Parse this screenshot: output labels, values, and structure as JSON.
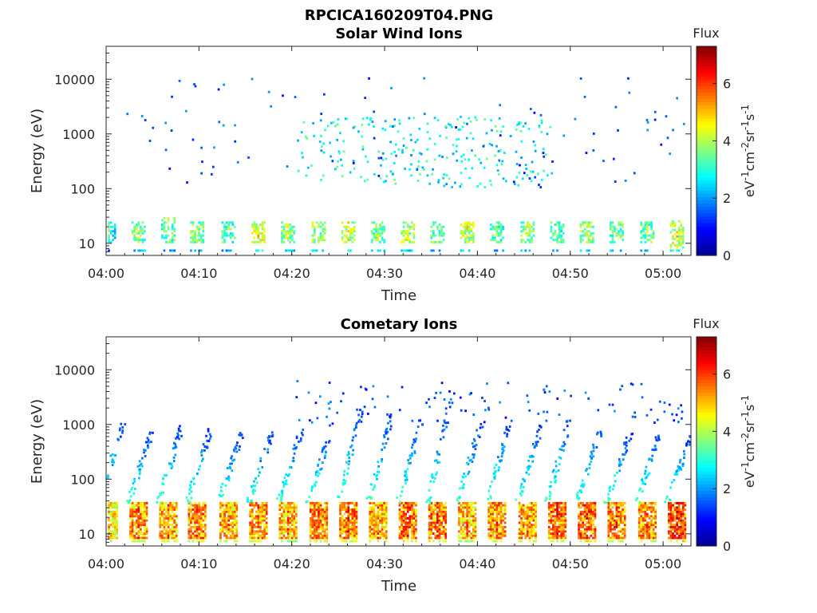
{
  "figure_title": "RPCICA160209T04.PNG",
  "colormap": [
    "#00008f",
    "#0000ff",
    "#0080ff",
    "#00ffff",
    "#80ff80",
    "#ffff00",
    "#ff8000",
    "#ff0000",
    "#800000"
  ],
  "chart_data": [
    {
      "type": "heatmap",
      "title": "Solar Wind Ions",
      "xlabel": "Time",
      "ylabel": "Energy (eV)",
      "yscale": "log",
      "xlim": [
        "04:00",
        "05:03"
      ],
      "ylim": [
        6,
        40000
      ],
      "xticks": [
        "04:00",
        "04:10",
        "04:20",
        "04:30",
        "04:40",
        "04:50",
        "05:00"
      ],
      "yticks": [
        10,
        100,
        1000,
        10000
      ],
      "ytick_labels": [
        "10",
        "100",
        "1000",
        "10000"
      ],
      "colorbar": {
        "title": "Flux",
        "label": "eV⁻¹cm⁻²sr⁻¹s⁻¹",
        "range": [
          0,
          7.3
        ],
        "ticks": [
          0,
          2,
          4,
          6
        ],
        "tick_labels": [
          "0",
          "2",
          "4",
          "6"
        ]
      },
      "bursts": [
        {
          "t": 0.3,
          "e_low": 10,
          "e_high": 25,
          "flux": 3.5
        },
        {
          "t": 3.5,
          "e_low": 10,
          "e_high": 25,
          "flux": 4.2
        },
        {
          "t": 6.7,
          "e_low": 10,
          "e_high": 30,
          "flux": 4.0
        },
        {
          "t": 9.8,
          "e_low": 10,
          "e_high": 25,
          "flux": 4.3
        },
        {
          "t": 13.2,
          "e_low": 10,
          "e_high": 25,
          "flux": 4.0
        },
        {
          "t": 16.4,
          "e_low": 10,
          "e_high": 25,
          "flux": 5.0
        },
        {
          "t": 19.6,
          "e_low": 10,
          "e_high": 25,
          "flux": 4.4
        },
        {
          "t": 22.9,
          "e_low": 10,
          "e_high": 25,
          "flux": 4.5
        },
        {
          "t": 26.1,
          "e_low": 10,
          "e_high": 25,
          "flux": 4.8
        },
        {
          "t": 29.3,
          "e_low": 10,
          "e_high": 25,
          "flux": 4.3
        },
        {
          "t": 32.5,
          "e_low": 10,
          "e_high": 25,
          "flux": 4.6
        },
        {
          "t": 35.7,
          "e_low": 10,
          "e_high": 25,
          "flux": 4.2
        },
        {
          "t": 38.9,
          "e_low": 10,
          "e_high": 25,
          "flux": 4.8
        },
        {
          "t": 42.1,
          "e_low": 10,
          "e_high": 25,
          "flux": 4.0
        },
        {
          "t": 45.4,
          "e_low": 10,
          "e_high": 25,
          "flux": 4.3
        },
        {
          "t": 48.6,
          "e_low": 10,
          "e_high": 25,
          "flux": 4.0
        },
        {
          "t": 51.8,
          "e_low": 10,
          "e_high": 25,
          "flux": 4.5
        },
        {
          "t": 55.0,
          "e_low": 10,
          "e_high": 25,
          "flux": 4.2
        },
        {
          "t": 58.3,
          "e_low": 10,
          "e_high": 25,
          "flux": 4.2
        },
        {
          "t": 61.5,
          "e_low": 8,
          "e_high": 25,
          "flux": 5.0
        }
      ],
      "upper_band": {
        "t_start": 20.5,
        "t_end": 48.0,
        "e_low": 100,
        "e_high": 2000,
        "flux": 2.8
      },
      "scatter_region": {
        "t_start": 2.0,
        "t_end": 63.0,
        "e_low": 100,
        "e_high": 10000,
        "flux": 1.5
      }
    },
    {
      "type": "heatmap",
      "title": "Cometary Ions",
      "xlabel": "Time",
      "ylabel": "Energy (eV)",
      "yscale": "log",
      "xlim": [
        "04:00",
        "05:03"
      ],
      "ylim": [
        6,
        40000
      ],
      "xticks": [
        "04:00",
        "04:10",
        "04:20",
        "04:30",
        "04:40",
        "04:50",
        "05:00"
      ],
      "yticks": [
        10,
        100,
        1000,
        10000
      ],
      "ytick_labels": [
        "10",
        "100",
        "1000",
        "10000"
      ],
      "colorbar": {
        "title": "Flux",
        "label": "eV⁻¹cm⁻²sr⁻¹s⁻¹",
        "range": [
          0,
          7.3
        ],
        "ticks": [
          0,
          2,
          4,
          6
        ],
        "tick_labels": [
          "0",
          "2",
          "4",
          "6"
        ]
      },
      "bursts": [
        {
          "t": 0.3,
          "e_low": 8,
          "e_high": 35,
          "flux": 5.5,
          "sweep_to": 1000
        },
        {
          "t": 3.5,
          "e_low": 8,
          "e_high": 35,
          "flux": 6.2,
          "sweep_to": 800
        },
        {
          "t": 6.7,
          "e_low": 8,
          "e_high": 35,
          "flux": 6.0,
          "sweep_to": 900
        },
        {
          "t": 9.8,
          "e_low": 8,
          "e_high": 35,
          "flux": 6.3,
          "sweep_to": 800
        },
        {
          "t": 13.2,
          "e_low": 8,
          "e_high": 35,
          "flux": 6.1,
          "sweep_to": 700
        },
        {
          "t": 16.4,
          "e_low": 8,
          "e_high": 35,
          "flux": 6.2,
          "sweep_to": 700
        },
        {
          "t": 19.6,
          "e_low": 8,
          "e_high": 35,
          "flux": 6.0,
          "sweep_to": 800
        },
        {
          "t": 22.9,
          "e_low": 8,
          "e_high": 35,
          "flux": 6.3,
          "sweep_to": 1000
        },
        {
          "t": 26.1,
          "e_low": 8,
          "e_high": 35,
          "flux": 6.4,
          "sweep_to": 2000
        },
        {
          "t": 29.3,
          "e_low": 8,
          "e_high": 35,
          "flux": 6.1,
          "sweep_to": 1500
        },
        {
          "t": 32.5,
          "e_low": 8,
          "e_high": 35,
          "flux": 6.5,
          "sweep_to": 1200
        },
        {
          "t": 35.7,
          "e_low": 8,
          "e_high": 35,
          "flux": 6.4,
          "sweep_to": 2500
        },
        {
          "t": 38.9,
          "e_low": 8,
          "e_high": 35,
          "flux": 6.0,
          "sweep_to": 1000
        },
        {
          "t": 42.1,
          "e_low": 8,
          "e_high": 35,
          "flux": 6.2,
          "sweep_to": 1200
        },
        {
          "t": 45.4,
          "e_low": 8,
          "e_high": 35,
          "flux": 6.1,
          "sweep_to": 900
        },
        {
          "t": 48.6,
          "e_low": 8,
          "e_high": 35,
          "flux": 6.5,
          "sweep_to": 1500
        },
        {
          "t": 51.8,
          "e_low": 8,
          "e_high": 35,
          "flux": 6.6,
          "sweep_to": 800
        },
        {
          "t": 55.0,
          "e_low": 8,
          "e_high": 35,
          "flux": 6.4,
          "sweep_to": 700
        },
        {
          "t": 58.3,
          "e_low": 8,
          "e_high": 35,
          "flux": 6.2,
          "sweep_to": 800
        },
        {
          "t": 61.5,
          "e_low": 8,
          "e_high": 35,
          "flux": 6.8,
          "sweep_to": 600
        }
      ],
      "scatter_region": {
        "t_start": 20.0,
        "t_end": 62.0,
        "e_low": 1000,
        "e_high": 6000,
        "flux": 1.5
      }
    }
  ]
}
